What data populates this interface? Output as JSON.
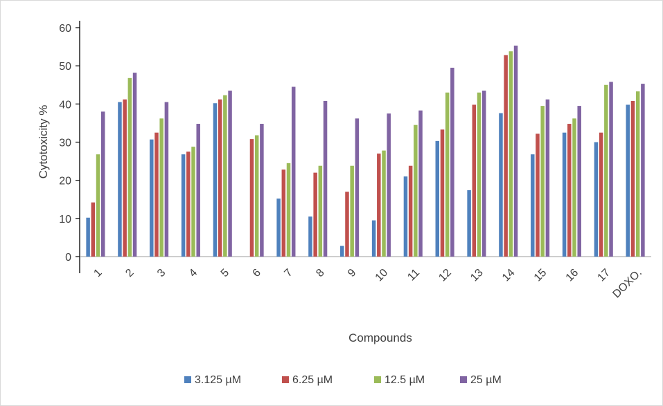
{
  "chart_data": {
    "type": "bar",
    "title": "",
    "xlabel": "Compounds",
    "ylabel": "Cytotoxicity %",
    "ylim": [
      0,
      60
    ],
    "yticks": [
      0,
      10,
      20,
      30,
      40,
      50,
      60
    ],
    "grid": false,
    "legend_position": "bottom",
    "categories": [
      "1",
      "2",
      "3",
      "4",
      "5",
      "6",
      "7",
      "8",
      "9",
      "10",
      "11",
      "12",
      "13",
      "14",
      "15",
      "16",
      "17",
      "DOXO."
    ],
    "series": [
      {
        "name": "3.125 µM",
        "color": "#4f81bd",
        "values": [
          10.2,
          40.5,
          30.7,
          26.8,
          40.2,
          0,
          15.2,
          10.5,
          2.8,
          9.5,
          21.0,
          30.3,
          17.4,
          37.6,
          26.8,
          32.5,
          30.0,
          39.8
        ]
      },
      {
        "name": "6.25 µM",
        "color": "#c0504d",
        "values": [
          14.2,
          41.2,
          32.5,
          27.5,
          41.2,
          30.8,
          22.8,
          22.0,
          17.0,
          27.0,
          23.8,
          33.3,
          39.8,
          52.8,
          32.2,
          34.8,
          32.5,
          40.8
        ]
      },
      {
        "name": "12.5 µM",
        "color": "#9bbb59",
        "values": [
          26.8,
          46.8,
          36.2,
          28.8,
          42.3,
          31.8,
          24.5,
          23.8,
          23.8,
          27.8,
          34.5,
          43.0,
          43.0,
          53.8,
          39.5,
          36.2,
          45.0,
          43.3
        ]
      },
      {
        "name": "25 µM",
        "color": "#8064a2",
        "values": [
          38.0,
          48.2,
          40.5,
          34.8,
          43.5,
          34.8,
          44.5,
          40.8,
          36.2,
          37.5,
          38.3,
          49.5,
          43.5,
          55.3,
          41.2,
          39.5,
          45.8,
          45.3
        ]
      }
    ]
  }
}
